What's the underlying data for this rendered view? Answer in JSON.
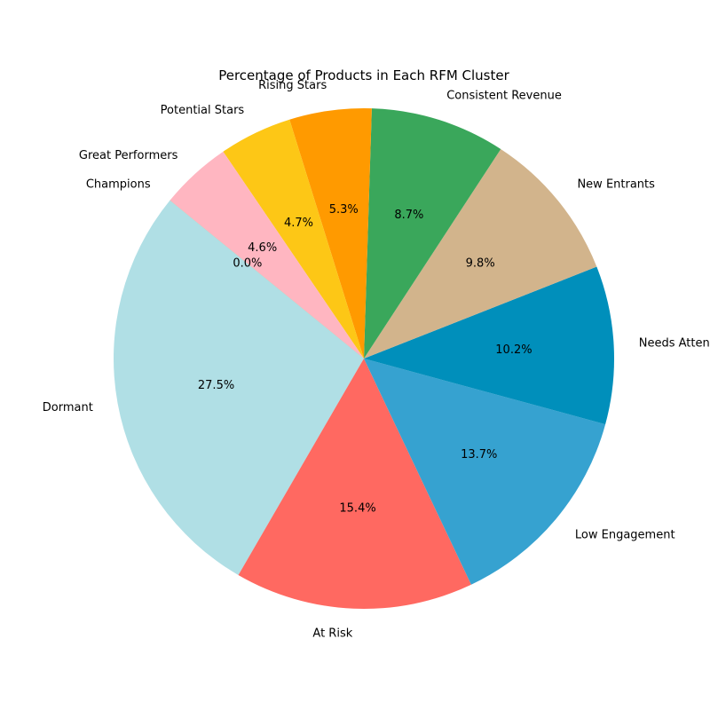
{
  "chart_data": {
    "type": "pie",
    "title": "Percentage of Products in Each RFM Cluster",
    "start_angle_deg": 140.8,
    "direction": "counterclockwise",
    "slices": [
      {
        "label": "Champions",
        "value": 0.0,
        "pct_label": "0.0%",
        "color": "#90ee90"
      },
      {
        "label": "Dormant",
        "value": 27.5,
        "pct_label": "27.5%",
        "color": "#b0dfe5"
      },
      {
        "label": "At Risk",
        "value": 15.4,
        "pct_label": "15.4%",
        "color": "#ff6961"
      },
      {
        "label": "Low Engagement",
        "value": 13.7,
        "pct_label": "13.7%",
        "color": "#36a2d0"
      },
      {
        "label": "Needs Attention",
        "value": 10.2,
        "pct_label": "10.2%",
        "color": "#008fbb"
      },
      {
        "label": "New Entrants",
        "value": 9.8,
        "pct_label": "9.8%",
        "color": "#d2b48c"
      },
      {
        "label": "Consistent Revenue",
        "value": 8.7,
        "pct_label": "8.7%",
        "color": "#3aa75b"
      },
      {
        "label": "Rising Stars",
        "value": 5.3,
        "pct_label": "5.3%",
        "color": "#ff9a00"
      },
      {
        "label": "Potential Stars",
        "value": 4.7,
        "pct_label": "4.7%",
        "color": "#fdc716"
      },
      {
        "label": "Great Performers",
        "value": 4.6,
        "pct_label": "4.6%",
        "color": "#ffb6c1"
      }
    ]
  }
}
